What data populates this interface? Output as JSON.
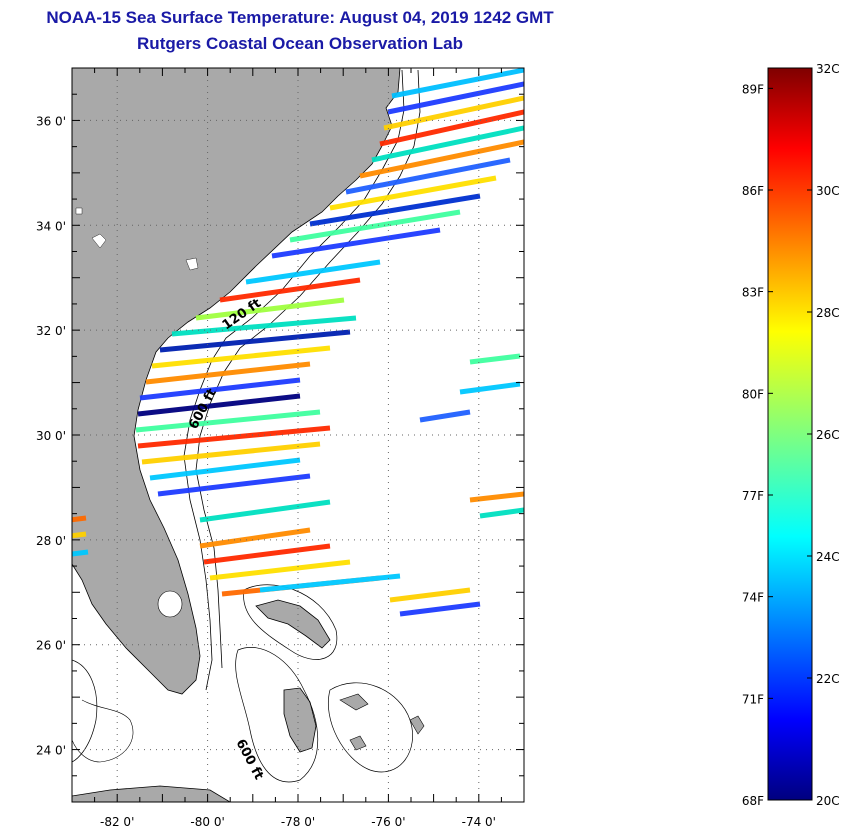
{
  "title": {
    "line1": "NOAA-15 Sea Surface Temperature:  August 04, 2019 1242 GMT",
    "line2": "Rutgers Coastal Ocean Observation Lab"
  },
  "map": {
    "lat_range": [
      23,
      37
    ],
    "lon_range": [
      -83,
      -73
    ],
    "lat_ticks": [
      {
        "value": 36,
        "label": "36 0'"
      },
      {
        "value": 34,
        "label": "34 0'"
      },
      {
        "value": 32,
        "label": "32 0'"
      },
      {
        "value": 30,
        "label": "30 0'"
      },
      {
        "value": 28,
        "label": "28 0'"
      },
      {
        "value": 26,
        "label": "26 0'"
      },
      {
        "value": 24,
        "label": "24 0'"
      }
    ],
    "lon_ticks": [
      {
        "value": -82,
        "label": "-82 0'"
      },
      {
        "value": -80,
        "label": "-80 0'"
      },
      {
        "value": -78,
        "label": "-78 0'"
      },
      {
        "value": -76,
        "label": "-76 0'"
      },
      {
        "value": -74,
        "label": "-74 0'"
      }
    ],
    "contour_labels": [
      "120 ft",
      "600 ft",
      "600 ft"
    ],
    "colors": {
      "land": "#a9a9a9",
      "coast": "#000000",
      "grid": "#666666"
    }
  },
  "colorbar": {
    "range_c": [
      20,
      32
    ],
    "fahrenheit_labels": [
      {
        "value": 68,
        "label": "68F"
      },
      {
        "value": 71,
        "label": "71F"
      },
      {
        "value": 74,
        "label": "74F"
      },
      {
        "value": 77,
        "label": "77F"
      },
      {
        "value": 80,
        "label": "80F"
      },
      {
        "value": 83,
        "label": "83F"
      },
      {
        "value": 86,
        "label": "86F"
      },
      {
        "value": 89,
        "label": "89F"
      }
    ],
    "celsius_labels": [
      {
        "value": 20,
        "label": "20C"
      },
      {
        "value": 22,
        "label": "22C"
      },
      {
        "value": 24,
        "label": "24C"
      },
      {
        "value": 26,
        "label": "26C"
      },
      {
        "value": 28,
        "label": "28C"
      },
      {
        "value": 30,
        "label": "30C"
      },
      {
        "value": 32,
        "label": "32C"
      }
    ]
  }
}
